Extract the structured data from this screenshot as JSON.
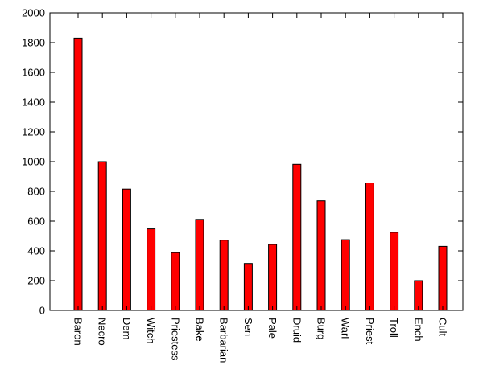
{
  "chart_data": {
    "type": "bar",
    "title": "",
    "xlabel": "",
    "ylabel": "",
    "ylim": [
      0,
      2000
    ],
    "yticks": [
      0,
      200,
      400,
      600,
      800,
      1000,
      1200,
      1400,
      1600,
      1800,
      2000
    ],
    "categories": [
      "Baron",
      "Necro",
      "Dem",
      "Witch",
      "Priestess",
      "Bake",
      "Barbarian",
      "Sen",
      "Pale",
      "Druid",
      "Burg",
      "Warl",
      "Priest",
      "Troll",
      "Ench",
      "Cult"
    ],
    "values": [
      1830,
      1000,
      815,
      548,
      388,
      612,
      472,
      315,
      443,
      982,
      737,
      475,
      857,
      525,
      200,
      430
    ],
    "bar_color": "#ff0000",
    "bar_stroke": "#000000",
    "grid": false,
    "legend": "none"
  }
}
